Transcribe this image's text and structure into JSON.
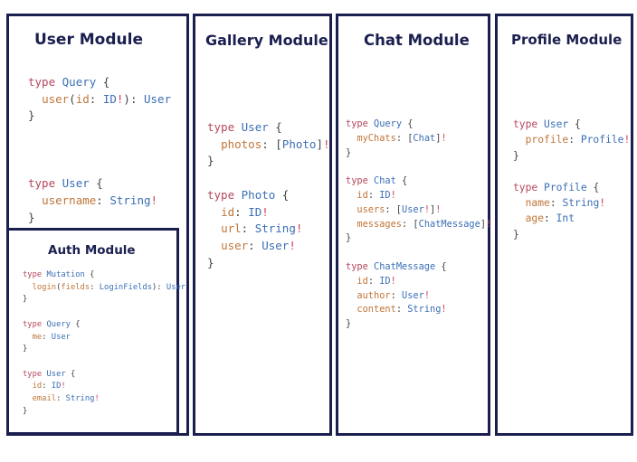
{
  "colors": {
    "border": "#1b1f4f",
    "keyword": "#b5475e",
    "type": "#3b6fb6",
    "field": "#c0763a",
    "bang": "#d0445a"
  },
  "modules": {
    "user": {
      "title": "User Module",
      "code": [
        [
          [
            "kw",
            "type"
          ],
          [
            "p",
            " "
          ],
          [
            "ty",
            "Query"
          ],
          [
            "p",
            " {"
          ]
        ],
        [
          [
            "p",
            "  "
          ],
          [
            "fd",
            "user"
          ],
          [
            "p",
            "("
          ],
          [
            "fd",
            "id"
          ],
          [
            "p",
            ": "
          ],
          [
            "ty",
            "ID"
          ],
          [
            "bang",
            "!"
          ],
          [
            "p",
            "): "
          ],
          [
            "ty",
            "User"
          ]
        ],
        [
          [
            "p",
            "}"
          ]
        ],
        [],
        [],
        [],
        [
          [
            "kw",
            "type"
          ],
          [
            "p",
            " "
          ],
          [
            "ty",
            "User"
          ],
          [
            "p",
            " {"
          ]
        ],
        [
          [
            "p",
            "  "
          ],
          [
            "fd",
            "username"
          ],
          [
            "p",
            ": "
          ],
          [
            "ty",
            "String"
          ],
          [
            "bang",
            "!"
          ]
        ],
        [
          [
            "p",
            "}"
          ]
        ]
      ]
    },
    "auth": {
      "title": "Auth Module",
      "code": [
        [
          [
            "kw",
            "type"
          ],
          [
            "p",
            " "
          ],
          [
            "ty",
            "Mutation"
          ],
          [
            "p",
            " {"
          ]
        ],
        [
          [
            "p",
            "  "
          ],
          [
            "fd",
            "login"
          ],
          [
            "p",
            "("
          ],
          [
            "fd",
            "fields"
          ],
          [
            "p",
            ": "
          ],
          [
            "ty",
            "LoginFields"
          ],
          [
            "p",
            "): "
          ],
          [
            "ty",
            "User"
          ]
        ],
        [
          [
            "p",
            "}"
          ]
        ],
        [],
        [
          [
            "kw",
            "type"
          ],
          [
            "p",
            " "
          ],
          [
            "ty",
            "Query"
          ],
          [
            "p",
            " {"
          ]
        ],
        [
          [
            "p",
            "  "
          ],
          [
            "fd",
            "me"
          ],
          [
            "p",
            ": "
          ],
          [
            "ty",
            "User"
          ]
        ],
        [
          [
            "p",
            "}"
          ]
        ],
        [],
        [
          [
            "kw",
            "type"
          ],
          [
            "p",
            " "
          ],
          [
            "ty",
            "User"
          ],
          [
            "p",
            " {"
          ]
        ],
        [
          [
            "p",
            "  "
          ],
          [
            "fd",
            "id"
          ],
          [
            "p",
            ": "
          ],
          [
            "ty",
            "ID"
          ],
          [
            "bang",
            "!"
          ]
        ],
        [
          [
            "p",
            "  "
          ],
          [
            "fd",
            "email"
          ],
          [
            "p",
            ": "
          ],
          [
            "ty",
            "String"
          ],
          [
            "bang",
            "!"
          ]
        ],
        [
          [
            "p",
            "}"
          ]
        ]
      ]
    },
    "gallery": {
      "title": "Gallery Module",
      "code": [
        [
          [
            "kw",
            "type"
          ],
          [
            "p",
            " "
          ],
          [
            "ty",
            "User"
          ],
          [
            "p",
            " {"
          ]
        ],
        [
          [
            "p",
            "  "
          ],
          [
            "fd",
            "photos"
          ],
          [
            "p",
            ": ["
          ],
          [
            "ty",
            "Photo"
          ],
          [
            "p",
            "]"
          ],
          [
            "bang",
            "!"
          ]
        ],
        [
          [
            "p",
            "}"
          ]
        ],
        [],
        [
          [
            "kw",
            "type"
          ],
          [
            "p",
            " "
          ],
          [
            "ty",
            "Photo"
          ],
          [
            "p",
            " {"
          ]
        ],
        [
          [
            "p",
            "  "
          ],
          [
            "fd",
            "id"
          ],
          [
            "p",
            ": "
          ],
          [
            "ty",
            "ID"
          ],
          [
            "bang",
            "!"
          ]
        ],
        [
          [
            "p",
            "  "
          ],
          [
            "fd",
            "url"
          ],
          [
            "p",
            ": "
          ],
          [
            "ty",
            "String"
          ],
          [
            "bang",
            "!"
          ]
        ],
        [
          [
            "p",
            "  "
          ],
          [
            "fd",
            "user"
          ],
          [
            "p",
            ": "
          ],
          [
            "ty",
            "User"
          ],
          [
            "bang",
            "!"
          ]
        ],
        [
          [
            "p",
            "}"
          ]
        ]
      ]
    },
    "chat": {
      "title": "Chat Module",
      "code": [
        [
          [
            "kw",
            "type"
          ],
          [
            "p",
            " "
          ],
          [
            "ty",
            "Query"
          ],
          [
            "p",
            " {"
          ]
        ],
        [
          [
            "p",
            "  "
          ],
          [
            "fd",
            "myChats"
          ],
          [
            "p",
            ": ["
          ],
          [
            "ty",
            "Chat"
          ],
          [
            "p",
            "]"
          ],
          [
            "bang",
            "!"
          ]
        ],
        [
          [
            "p",
            "}"
          ]
        ],
        [],
        [
          [
            "kw",
            "type"
          ],
          [
            "p",
            " "
          ],
          [
            "ty",
            "Chat"
          ],
          [
            "p",
            " {"
          ]
        ],
        [
          [
            "p",
            "  "
          ],
          [
            "fd",
            "id"
          ],
          [
            "p",
            ": "
          ],
          [
            "ty",
            "ID"
          ],
          [
            "bang",
            "!"
          ]
        ],
        [
          [
            "p",
            "  "
          ],
          [
            "fd",
            "users"
          ],
          [
            "p",
            ": ["
          ],
          [
            "ty",
            "User"
          ],
          [
            "bang",
            "!"
          ],
          [
            "p",
            "]"
          ],
          [
            "bang",
            "!"
          ]
        ],
        [
          [
            "p",
            "  "
          ],
          [
            "fd",
            "messages"
          ],
          [
            "p",
            ": ["
          ],
          [
            "ty",
            "ChatMessage"
          ],
          [
            "p",
            "]"
          ],
          [
            "bang",
            "!"
          ]
        ],
        [
          [
            "p",
            "}"
          ]
        ],
        [],
        [
          [
            "kw",
            "type"
          ],
          [
            "p",
            " "
          ],
          [
            "ty",
            "ChatMessage"
          ],
          [
            "p",
            " {"
          ]
        ],
        [
          [
            "p",
            "  "
          ],
          [
            "fd",
            "id"
          ],
          [
            "p",
            ": "
          ],
          [
            "ty",
            "ID"
          ],
          [
            "bang",
            "!"
          ]
        ],
        [
          [
            "p",
            "  "
          ],
          [
            "fd",
            "author"
          ],
          [
            "p",
            ": "
          ],
          [
            "ty",
            "User"
          ],
          [
            "bang",
            "!"
          ]
        ],
        [
          [
            "p",
            "  "
          ],
          [
            "fd",
            "content"
          ],
          [
            "p",
            ": "
          ],
          [
            "ty",
            "String"
          ],
          [
            "bang",
            "!"
          ]
        ],
        [
          [
            "p",
            "}"
          ]
        ]
      ]
    },
    "profile": {
      "title": "Profile Module",
      "code": [
        [
          [
            "kw",
            "type"
          ],
          [
            "p",
            " "
          ],
          [
            "ty",
            "User"
          ],
          [
            "p",
            " {"
          ]
        ],
        [
          [
            "p",
            "  "
          ],
          [
            "fd",
            "profile"
          ],
          [
            "p",
            ": "
          ],
          [
            "ty",
            "Profile"
          ],
          [
            "bang",
            "!"
          ]
        ],
        [
          [
            "p",
            "}"
          ]
        ],
        [],
        [
          [
            "kw",
            "type"
          ],
          [
            "p",
            " "
          ],
          [
            "ty",
            "Profile"
          ],
          [
            "p",
            " {"
          ]
        ],
        [
          [
            "p",
            "  "
          ],
          [
            "fd",
            "name"
          ],
          [
            "p",
            ": "
          ],
          [
            "ty",
            "String"
          ],
          [
            "bang",
            "!"
          ]
        ],
        [
          [
            "p",
            "  "
          ],
          [
            "fd",
            "age"
          ],
          [
            "p",
            ": "
          ],
          [
            "ty",
            "Int"
          ]
        ],
        [
          [
            "p",
            "}"
          ]
        ]
      ]
    }
  }
}
